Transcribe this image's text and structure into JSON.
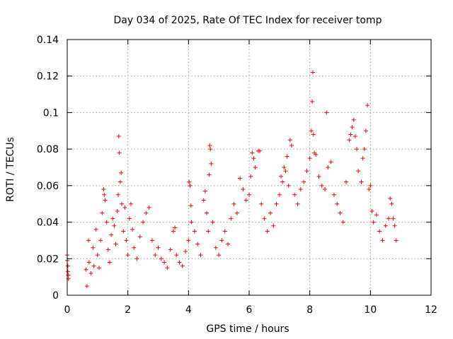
{
  "chart_data": {
    "type": "scatter",
    "title": "Day 034 of 2025, Rate Of TEC Index for receiver tomp",
    "xlabel": "GPS time / hours",
    "ylabel": "ROTI / TECUs",
    "xlim": [
      0,
      12
    ],
    "ylim": [
      0,
      0.14
    ],
    "xticks": [
      0,
      2,
      4,
      6,
      8,
      10,
      12
    ],
    "xtick_labels": [
      "0",
      "2",
      "4",
      "6",
      "8",
      "10",
      "12"
    ],
    "yticks": [
      0,
      0.02,
      0.04,
      0.06,
      0.08,
      0.1,
      0.12,
      0.14
    ],
    "ytick_labels": [
      "0",
      "0.02",
      "0.04",
      "0.06",
      "0.08",
      "0.1",
      "0.12",
      "0.14"
    ],
    "grid": true,
    "marker": "+",
    "series": [
      {
        "name": "ROTI",
        "color": "#ff0000",
        "points": [
          [
            0.0,
            0.022
          ],
          [
            0.0,
            0.019
          ],
          [
            0.02,
            0.016
          ],
          [
            0.02,
            0.013
          ],
          [
            0.03,
            0.011
          ],
          [
            0.04,
            0.009
          ],
          [
            0.62,
            0.014
          ],
          [
            0.65,
            0.005
          ],
          [
            0.7,
            0.03
          ],
          [
            0.72,
            0.018
          ],
          [
            0.78,
            0.012
          ],
          [
            0.85,
            0.026
          ],
          [
            0.88,
            0.016
          ],
          [
            0.95,
            0.036
          ],
          [
            1.0,
            0.022
          ],
          [
            1.05,
            0.015
          ],
          [
            1.1,
            0.03
          ],
          [
            1.15,
            0.045
          ],
          [
            1.2,
            0.058
          ],
          [
            1.22,
            0.055
          ],
          [
            1.25,
            0.052
          ],
          [
            1.3,
            0.04
          ],
          [
            1.35,
            0.025
          ],
          [
            1.4,
            0.018
          ],
          [
            1.45,
            0.033
          ],
          [
            1.5,
            0.042
          ],
          [
            1.55,
            0.038
          ],
          [
            1.6,
            0.028
          ],
          [
            1.65,
            0.046
          ],
          [
            1.68,
            0.055
          ],
          [
            1.7,
            0.087
          ],
          [
            1.72,
            0.078
          ],
          [
            1.75,
            0.062
          ],
          [
            1.78,
            0.067
          ],
          [
            1.8,
            0.05
          ],
          [
            1.85,
            0.035
          ],
          [
            1.9,
            0.048
          ],
          [
            1.95,
            0.03
          ],
          [
            2.0,
            0.022
          ],
          [
            2.05,
            0.042
          ],
          [
            2.1,
            0.05
          ],
          [
            2.15,
            0.036
          ],
          [
            2.2,
            0.026
          ],
          [
            2.3,
            0.02
          ],
          [
            2.4,
            0.032
          ],
          [
            2.5,
            0.04
          ],
          [
            2.6,
            0.045
          ],
          [
            2.7,
            0.048
          ],
          [
            2.8,
            0.03
          ],
          [
            2.9,
            0.022
          ],
          [
            3.0,
            0.026
          ],
          [
            3.1,
            0.02
          ],
          [
            3.2,
            0.018
          ],
          [
            3.3,
            0.015
          ],
          [
            3.4,
            0.025
          ],
          [
            3.5,
            0.035
          ],
          [
            3.55,
            0.037
          ],
          [
            3.6,
            0.022
          ],
          [
            3.7,
            0.018
          ],
          [
            3.8,
            0.016
          ],
          [
            3.9,
            0.024
          ],
          [
            4.0,
            0.03
          ],
          [
            4.02,
            0.062
          ],
          [
            4.05,
            0.06
          ],
          [
            4.08,
            0.049
          ],
          [
            4.1,
            0.04
          ],
          [
            4.2,
            0.035
          ],
          [
            4.3,
            0.028
          ],
          [
            4.4,
            0.022
          ],
          [
            4.5,
            0.052
          ],
          [
            4.55,
            0.057
          ],
          [
            4.6,
            0.045
          ],
          [
            4.65,
            0.035
          ],
          [
            4.68,
            0.066
          ],
          [
            4.7,
            0.082
          ],
          [
            4.72,
            0.08
          ],
          [
            4.75,
            0.072
          ],
          [
            4.8,
            0.04
          ],
          [
            4.9,
            0.026
          ],
          [
            5.0,
            0.022
          ],
          [
            5.1,
            0.03
          ],
          [
            5.2,
            0.035
          ],
          [
            5.3,
            0.028
          ],
          [
            5.4,
            0.042
          ],
          [
            5.5,
            0.05
          ],
          [
            5.6,
            0.045
          ],
          [
            5.7,
            0.064
          ],
          [
            5.8,
            0.058
          ],
          [
            5.9,
            0.052
          ],
          [
            6.0,
            0.055
          ],
          [
            6.05,
            0.065
          ],
          [
            6.1,
            0.078
          ],
          [
            6.15,
            0.075
          ],
          [
            6.2,
            0.07
          ],
          [
            6.3,
            0.079
          ],
          [
            6.35,
            0.079
          ],
          [
            6.4,
            0.05
          ],
          [
            6.5,
            0.042
          ],
          [
            6.6,
            0.035
          ],
          [
            6.7,
            0.045
          ],
          [
            6.8,
            0.038
          ],
          [
            6.9,
            0.05
          ],
          [
            7.0,
            0.055
          ],
          [
            7.05,
            0.065
          ],
          [
            7.1,
            0.062
          ],
          [
            7.15,
            0.07
          ],
          [
            7.2,
            0.068
          ],
          [
            7.25,
            0.076
          ],
          [
            7.3,
            0.06
          ],
          [
            7.35,
            0.085
          ],
          [
            7.4,
            0.082
          ],
          [
            7.5,
            0.055
          ],
          [
            7.6,
            0.05
          ],
          [
            7.7,
            0.058
          ],
          [
            7.8,
            0.062
          ],
          [
            7.9,
            0.068
          ],
          [
            8.0,
            0.075
          ],
          [
            8.05,
            0.09
          ],
          [
            8.08,
            0.106
          ],
          [
            8.1,
            0.122
          ],
          [
            8.12,
            0.088
          ],
          [
            8.15,
            0.078
          ],
          [
            8.2,
            0.077
          ],
          [
            8.3,
            0.065
          ],
          [
            8.4,
            0.06
          ],
          [
            8.5,
            0.058
          ],
          [
            8.55,
            0.1
          ],
          [
            8.6,
            0.07
          ],
          [
            8.7,
            0.073
          ],
          [
            8.8,
            0.055
          ],
          [
            8.9,
            0.05
          ],
          [
            9.0,
            0.045
          ],
          [
            9.1,
            0.04
          ],
          [
            9.2,
            0.062
          ],
          [
            9.3,
            0.085
          ],
          [
            9.35,
            0.088
          ],
          [
            9.4,
            0.092
          ],
          [
            9.45,
            0.096
          ],
          [
            9.5,
            0.087
          ],
          [
            9.55,
            0.08
          ],
          [
            9.6,
            0.068
          ],
          [
            9.7,
            0.062
          ],
          [
            9.75,
            0.075
          ],
          [
            9.8,
            0.08
          ],
          [
            9.85,
            0.09
          ],
          [
            9.9,
            0.104
          ],
          [
            9.95,
            0.058
          ],
          [
            10.0,
            0.06
          ],
          [
            10.05,
            0.046
          ],
          [
            10.1,
            0.04
          ],
          [
            10.2,
            0.044
          ],
          [
            10.3,
            0.035
          ],
          [
            10.4,
            0.03
          ],
          [
            10.5,
            0.038
          ],
          [
            10.6,
            0.042
          ],
          [
            10.65,
            0.053
          ],
          [
            10.7,
            0.05
          ],
          [
            10.75,
            0.042
          ],
          [
            10.8,
            0.038
          ],
          [
            10.85,
            0.03
          ]
        ]
      }
    ]
  }
}
